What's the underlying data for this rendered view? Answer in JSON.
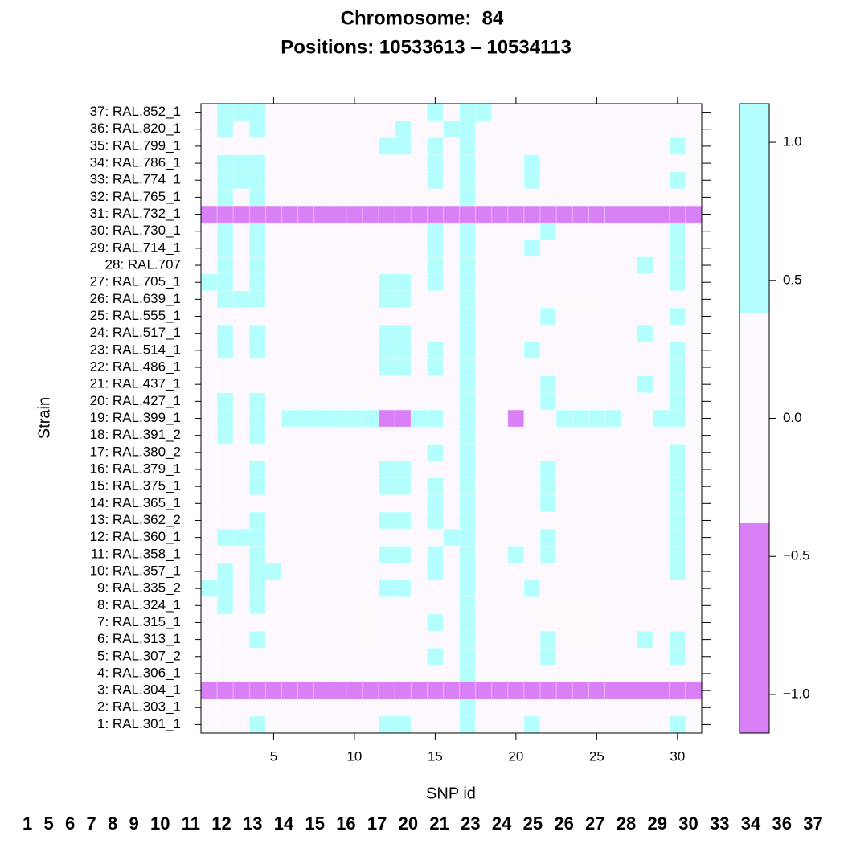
{
  "chart_data": {
    "type": "heatmap",
    "title": "Chromosome:  84",
    "subtitle": "Positions: 10533613 – 10534113",
    "x_label": "SNP id",
    "y_label": "Strain",
    "xlim": [
      0.5,
      31.5
    ],
    "ylim": [
      0.5,
      37.5
    ],
    "xticks": [
      5,
      10,
      15,
      20,
      25,
      30
    ],
    "categories": [
      "1: RAL.301_1",
      "2: RAL.303_1",
      "3: RAL.304_1",
      "4: RAL.306_1",
      "5: RAL.307_2",
      "6: RAL.313_1",
      "7: RAL.315_1",
      "8: RAL.324_1",
      "9: RAL.335_2",
      "10: RAL.357_1",
      "11: RAL.358_1",
      "12: RAL.360_1",
      "13: RAL.362_2",
      "14: RAL.365_1",
      "15: RAL.375_1",
      "16: RAL.379_1",
      "17: RAL.380_2",
      "18: RAL.391_2",
      "19: RAL.399_1",
      "20: RAL.427_1",
      "21: RAL.437_1",
      "22: RAL.486_1",
      "23: RAL.514_1",
      "24: RAL.517_1",
      "25: RAL.555_1",
      "26: RAL.639_1",
      "27: RAL.705_1",
      "28: RAL.707",
      "29: RAL.714_1",
      "30: RAL.730_1",
      "31: RAL.732_1",
      "32: RAL.765_1",
      "33: RAL.774_1",
      "34: RAL.786_1",
      "35: RAL.799_1",
      "36: RAL.820_1",
      "37: RAL.852_1"
    ],
    "z": [
      [
        0,
        0,
        0,
        1,
        0,
        0,
        0,
        0,
        0,
        0,
        0,
        1,
        1,
        0,
        0,
        0,
        1,
        0,
        0,
        0,
        1,
        0,
        0,
        0,
        0,
        0,
        0,
        0,
        0,
        1,
        0
      ],
      [
        0,
        0,
        0,
        0,
        0,
        0,
        0,
        0,
        0,
        0,
        0,
        0,
        0,
        0,
        0,
        0,
        1,
        0,
        0,
        0,
        0,
        0,
        0,
        0,
        0,
        0,
        0,
        0,
        0,
        0,
        0
      ],
      [
        -1,
        -1,
        -1,
        -1,
        -1,
        -1,
        -1,
        -1,
        -1,
        -1,
        -1,
        -1,
        -1,
        -1,
        -1,
        -1,
        -1,
        -1,
        -1,
        -1,
        -1,
        -1,
        -1,
        -1,
        -1,
        -1,
        -1,
        -1,
        -1,
        -1,
        -1
      ],
      [
        0,
        0,
        0,
        0,
        0,
        0,
        0,
        0,
        0,
        0,
        0,
        0,
        0,
        0,
        0,
        0,
        1,
        0,
        0,
        0,
        0,
        0,
        0,
        0,
        0,
        0,
        0,
        0,
        0,
        0,
        0
      ],
      [
        0,
        0,
        0,
        0,
        0,
        0,
        0,
        0,
        0,
        0,
        0,
        0,
        0,
        0,
        1,
        0,
        1,
        0,
        0,
        0,
        0,
        1,
        0,
        0,
        0,
        0,
        0,
        0,
        0,
        1,
        0
      ],
      [
        0,
        0,
        0,
        1,
        0,
        0,
        0,
        0,
        0,
        0,
        0,
        0,
        0,
        0,
        0,
        0,
        1,
        0,
        0,
        0,
        0,
        1,
        0,
        0,
        0,
        0,
        0,
        1,
        0,
        1,
        0
      ],
      [
        0,
        0,
        0,
        0,
        0,
        0,
        0,
        0,
        0,
        0,
        0,
        0,
        0,
        0,
        1,
        0,
        1,
        0,
        0,
        0,
        0,
        0,
        0,
        0,
        0,
        0,
        0,
        0,
        0,
        0,
        0
      ],
      [
        0,
        1,
        0,
        1,
        0,
        0,
        0,
        0,
        0,
        0,
        0,
        0,
        0,
        0,
        0,
        0,
        1,
        0,
        0,
        0,
        0,
        0,
        0,
        0,
        0,
        0,
        0,
        0,
        0,
        0,
        0
      ],
      [
        1,
        1,
        0,
        1,
        0,
        0,
        0,
        0,
        0,
        0,
        0,
        1,
        1,
        0,
        0,
        0,
        1,
        0,
        0,
        0,
        1,
        0,
        0,
        0,
        0,
        0,
        0,
        0,
        0,
        0,
        0
      ],
      [
        0,
        1,
        0,
        1,
        1,
        0,
        0,
        0,
        0,
        0,
        0,
        0,
        0,
        0,
        1,
        0,
        1,
        0,
        0,
        0,
        0,
        0,
        0,
        0,
        0,
        0,
        0,
        0,
        0,
        1,
        0
      ],
      [
        0,
        0,
        0,
        1,
        0,
        0,
        0,
        0,
        0,
        0,
        0,
        1,
        1,
        0,
        1,
        0,
        1,
        0,
        0,
        1,
        0,
        1,
        0,
        0,
        0,
        0,
        0,
        0,
        0,
        1,
        0
      ],
      [
        0,
        1,
        1,
        1,
        0,
        0,
        0,
        0,
        0,
        0,
        0,
        0,
        0,
        0,
        0,
        1,
        1,
        0,
        0,
        0,
        0,
        1,
        0,
        0,
        0,
        0,
        0,
        0,
        0,
        1,
        0
      ],
      [
        0,
        0,
        0,
        1,
        0,
        0,
        0,
        0,
        0,
        0,
        0,
        1,
        1,
        0,
        1,
        0,
        1,
        0,
        0,
        0,
        0,
        0,
        0,
        0,
        0,
        0,
        0,
        0,
        0,
        1,
        0
      ],
      [
        0,
        0,
        0,
        0,
        0,
        0,
        0,
        0,
        0,
        0,
        0,
        0,
        0,
        0,
        1,
        0,
        1,
        0,
        0,
        0,
        0,
        1,
        0,
        0,
        0,
        0,
        0,
        0,
        0,
        1,
        0
      ],
      [
        0,
        0,
        0,
        1,
        0,
        0,
        0,
        0,
        0,
        0,
        0,
        1,
        1,
        0,
        1,
        0,
        1,
        0,
        0,
        0,
        0,
        1,
        0,
        0,
        0,
        0,
        0,
        0,
        0,
        1,
        0
      ],
      [
        0,
        0,
        0,
        1,
        0,
        0,
        0,
        0,
        0,
        0,
        0,
        1,
        1,
        0,
        0,
        0,
        1,
        0,
        0,
        0,
        0,
        1,
        0,
        0,
        0,
        0,
        0,
        0,
        0,
        1,
        0
      ],
      [
        0,
        0,
        0,
        0,
        0,
        0,
        0,
        0,
        0,
        0,
        0,
        0,
        0,
        0,
        1,
        0,
        1,
        0,
        0,
        0,
        0,
        0,
        0,
        0,
        0,
        0,
        0,
        0,
        0,
        1,
        0
      ],
      [
        0,
        1,
        0,
        1,
        0,
        0,
        0,
        0,
        0,
        0,
        0,
        0,
        0,
        0,
        0,
        0,
        1,
        0,
        0,
        0,
        0,
        0,
        0,
        0,
        0,
        0,
        0,
        0,
        0,
        0,
        0
      ],
      [
        0,
        1,
        0,
        1,
        0,
        1,
        1,
        1,
        1,
        1,
        1,
        -1,
        -1,
        1,
        1,
        0,
        1,
        0,
        0,
        -1,
        0,
        0,
        1,
        1,
        1,
        1,
        0,
        0,
        1,
        1,
        0
      ],
      [
        0,
        1,
        0,
        1,
        0,
        0,
        0,
        0,
        0,
        0,
        0,
        0,
        0,
        0,
        0,
        0,
        1,
        0,
        0,
        0,
        0,
        1,
        0,
        0,
        0,
        0,
        0,
        0,
        0,
        1,
        0
      ],
      [
        0,
        0,
        0,
        0,
        0,
        0,
        0,
        0,
        0,
        0,
        0,
        0,
        0,
        0,
        0,
        0,
        1,
        0,
        0,
        0,
        0,
        1,
        0,
        0,
        0,
        0,
        0,
        1,
        0,
        1,
        0
      ],
      [
        0,
        0,
        0,
        0,
        0,
        0,
        0,
        0,
        0,
        0,
        0,
        1,
        1,
        0,
        1,
        0,
        1,
        0,
        0,
        0,
        0,
        0,
        0,
        0,
        0,
        0,
        0,
        0,
        0,
        1,
        0
      ],
      [
        0,
        1,
        0,
        1,
        0,
        0,
        0,
        0,
        0,
        0,
        0,
        1,
        1,
        0,
        1,
        0,
        1,
        0,
        0,
        0,
        1,
        0,
        0,
        0,
        0,
        0,
        0,
        0,
        0,
        1,
        0
      ],
      [
        0,
        1,
        0,
        1,
        0,
        0,
        0,
        0,
        0,
        0,
        0,
        1,
        1,
        0,
        0,
        0,
        1,
        0,
        0,
        0,
        0,
        0,
        0,
        0,
        0,
        0,
        0,
        1,
        0,
        0,
        0
      ],
      [
        0,
        0,
        0,
        0,
        0,
        0,
        0,
        0,
        0,
        0,
        0,
        0,
        0,
        0,
        0,
        0,
        1,
        0,
        0,
        0,
        0,
        1,
        0,
        0,
        0,
        0,
        0,
        0,
        0,
        1,
        0
      ],
      [
        0,
        1,
        1,
        1,
        0,
        0,
        0,
        0,
        0,
        0,
        0,
        1,
        1,
        0,
        0,
        0,
        1,
        0,
        0,
        0,
        0,
        0,
        0,
        0,
        0,
        0,
        0,
        0,
        0,
        0,
        0
      ],
      [
        1,
        1,
        0,
        1,
        0,
        0,
        0,
        0,
        0,
        0,
        0,
        1,
        1,
        0,
        1,
        0,
        1,
        0,
        0,
        0,
        0,
        0,
        0,
        0,
        0,
        0,
        0,
        0,
        0,
        1,
        0
      ],
      [
        0,
        1,
        0,
        1,
        0,
        0,
        0,
        0,
        0,
        0,
        0,
        0,
        0,
        0,
        1,
        0,
        1,
        0,
        0,
        0,
        0,
        0,
        0,
        0,
        0,
        0,
        0,
        1,
        0,
        1,
        0
      ],
      [
        0,
        1,
        0,
        1,
        0,
        0,
        0,
        0,
        0,
        0,
        0,
        0,
        0,
        0,
        1,
        0,
        1,
        0,
        0,
        0,
        1,
        0,
        0,
        0,
        0,
        0,
        0,
        0,
        0,
        1,
        0
      ],
      [
        0,
        1,
        0,
        1,
        0,
        0,
        0,
        0,
        0,
        0,
        0,
        0,
        0,
        0,
        1,
        0,
        1,
        0,
        0,
        0,
        0,
        1,
        0,
        0,
        0,
        0,
        0,
        0,
        0,
        1,
        0
      ],
      [
        -1,
        -1,
        -1,
        -1,
        -1,
        -1,
        -1,
        -1,
        -1,
        -1,
        -1,
        -1,
        -1,
        -1,
        -1,
        -1,
        -1,
        -1,
        -1,
        -1,
        -1,
        -1,
        -1,
        -1,
        -1,
        -1,
        -1,
        -1,
        -1,
        -1,
        -1
      ],
      [
        0,
        1,
        0,
        1,
        0,
        0,
        0,
        0,
        0,
        0,
        0,
        0,
        0,
        0,
        0,
        0,
        1,
        0,
        0,
        0,
        0,
        0,
        0,
        0,
        0,
        0,
        0,
        0,
        0,
        0,
        0
      ],
      [
        0,
        1,
        1,
        1,
        0,
        0,
        0,
        0,
        0,
        0,
        0,
        0,
        0,
        0,
        1,
        0,
        1,
        0,
        0,
        0,
        1,
        0,
        0,
        0,
        0,
        0,
        0,
        0,
        0,
        1,
        0
      ],
      [
        0,
        1,
        1,
        1,
        0,
        0,
        0,
        0,
        0,
        0,
        0,
        0,
        0,
        0,
        1,
        0,
        1,
        0,
        0,
        0,
        1,
        0,
        0,
        0,
        0,
        0,
        0,
        0,
        0,
        0,
        0
      ],
      [
        0,
        0,
        0,
        0,
        0,
        0,
        0,
        0,
        0,
        0,
        0,
        1,
        1,
        0,
        1,
        0,
        1,
        0,
        0,
        0,
        0,
        0,
        0,
        0,
        0,
        0,
        0,
        0,
        0,
        1,
        0
      ],
      [
        0,
        1,
        0,
        1,
        0,
        0,
        0,
        0,
        0,
        0,
        0,
        0,
        1,
        0,
        0,
        1,
        1,
        0,
        0,
        0,
        0,
        0,
        0,
        0,
        0,
        0,
        0,
        0,
        0,
        0,
        0
      ],
      [
        0,
        1,
        1,
        1,
        0,
        0,
        0,
        0,
        0,
        0,
        0,
        0,
        0,
        0,
        1,
        0,
        1,
        1,
        0,
        0,
        0,
        0,
        0,
        0,
        0,
        0,
        0,
        0,
        0,
        0,
        0
      ]
    ],
    "colorkey": {
      "breaks": [
        -1.14,
        -0.38,
        0.38,
        1.14
      ],
      "colors": [
        "#DA80F7",
        "#FDF8FD",
        "#B3FFFE"
      ],
      "ticks": [
        {
          "value": -1,
          "label": "−1.0"
        },
        {
          "value": -0.5,
          "label": "−0.5"
        },
        {
          "value": 0,
          "label": "0.0"
        },
        {
          "value": 0.5,
          "label": "0.5"
        },
        {
          "value": 1,
          "label": "1.0"
        }
      ]
    },
    "footer": [
      1,
      5,
      6,
      7,
      8,
      9,
      10,
      11,
      12,
      13,
      14,
      15,
      16,
      17,
      20,
      21,
      23,
      24,
      25,
      26,
      27,
      28,
      29,
      30,
      33,
      34,
      36,
      37
    ]
  }
}
